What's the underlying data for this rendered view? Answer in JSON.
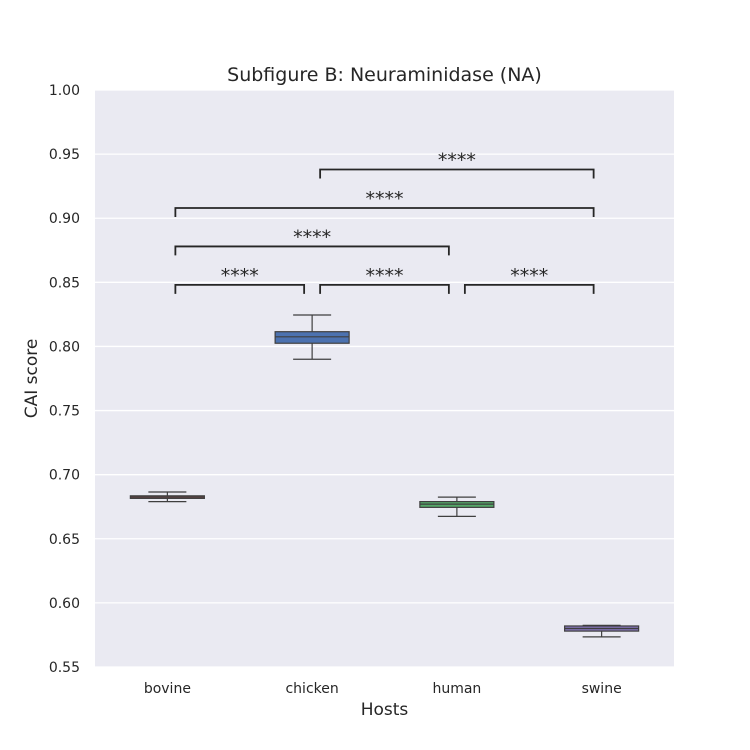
{
  "chart_data": {
    "type": "box",
    "title": "Subfigure B: Neuraminidase (NA)",
    "xlabel": "Hosts",
    "ylabel": "CAI score",
    "ylim": [
      0.55,
      1.0
    ],
    "yticks": [
      "0.55",
      "0.60",
      "0.65",
      "0.70",
      "0.75",
      "0.80",
      "0.85",
      "0.90",
      "0.95",
      "1.00"
    ],
    "grid": true,
    "categories": [
      "bovine",
      "chicken",
      "human",
      "swine"
    ],
    "boxes": [
      {
        "category": "bovine",
        "color": "#c44e52",
        "whisker_low": 0.679,
        "q1": 0.6815,
        "median": 0.6825,
        "q3": 0.6835,
        "whisker_high": 0.6865
      },
      {
        "category": "chicken",
        "color": "#4c72b0",
        "whisker_low": 0.79,
        "q1": 0.8025,
        "median": 0.8075,
        "q3": 0.8115,
        "whisker_high": 0.8245
      },
      {
        "category": "human",
        "color": "#55a868",
        "whisker_low": 0.6675,
        "q1": 0.6745,
        "median": 0.677,
        "q3": 0.679,
        "whisker_high": 0.6825
      },
      {
        "category": "swine",
        "color": "#8172b2",
        "whisker_low": 0.5735,
        "q1": 0.578,
        "median": 0.58,
        "q3": 0.582,
        "whisker_high": 0.5825
      }
    ],
    "annotations": [
      {
        "from": "bovine",
        "to": "chicken",
        "label": "****",
        "level": 0
      },
      {
        "from": "chicken",
        "to": "human",
        "label": "****",
        "level": 0
      },
      {
        "from": "human",
        "to": "swine",
        "label": "****",
        "level": 0
      },
      {
        "from": "bovine",
        "to": "human",
        "label": "****",
        "level": 1
      },
      {
        "from": "bovine",
        "to": "swine",
        "label": "****",
        "level": 2
      },
      {
        "from": "chicken",
        "to": "swine",
        "label": "****",
        "level": 3
      }
    ]
  }
}
